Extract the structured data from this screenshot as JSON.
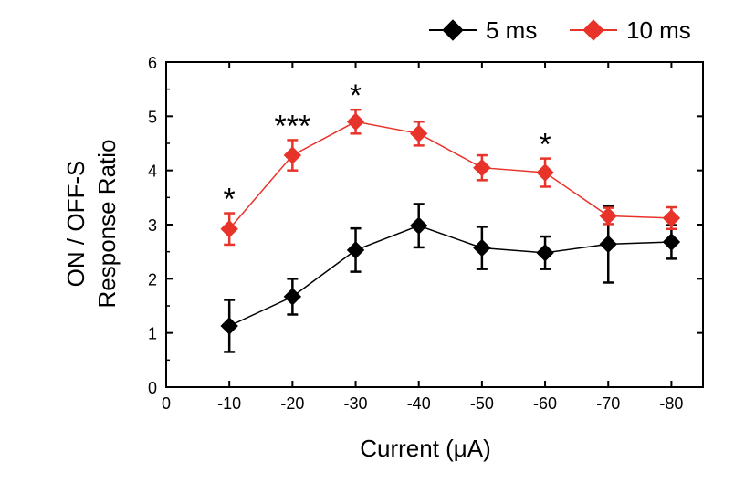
{
  "chart_data": {
    "type": "line",
    "title": "",
    "xlabel": "Current (μA)",
    "ylabel_lines": [
      "ON / OFF-S",
      "Response Ratio"
    ],
    "x_ticks": [
      0,
      -10,
      -20,
      -30,
      -40,
      -50,
      -60,
      -70,
      -80
    ],
    "y_ticks": [
      0,
      1,
      2,
      3,
      4,
      5,
      6
    ],
    "xlim": [
      0,
      -85
    ],
    "ylim": [
      0,
      6
    ],
    "x": [
      -10,
      -20,
      -30,
      -40,
      -50,
      -60,
      -70,
      -80
    ],
    "series": [
      {
        "name": "5 ms",
        "color": "#000000",
        "marker": "diamond",
        "values": [
          1.13,
          1.67,
          2.53,
          2.98,
          2.57,
          2.48,
          2.64,
          2.68
        ],
        "errors": [
          0.48,
          0.33,
          0.4,
          0.4,
          0.39,
          0.3,
          0.71,
          0.31
        ]
      },
      {
        "name": "10 ms",
        "color": "#e8332a",
        "marker": "diamond",
        "values": [
          2.92,
          4.28,
          4.9,
          4.68,
          4.05,
          3.96,
          3.16,
          3.12
        ],
        "errors": [
          0.29,
          0.28,
          0.22,
          0.22,
          0.23,
          0.26,
          0.15,
          0.2
        ]
      }
    ],
    "annotations": [
      {
        "x": -10,
        "text": "*"
      },
      {
        "x": -20,
        "text": "***"
      },
      {
        "x": -30,
        "text": "*"
      },
      {
        "x": -60,
        "text": "*"
      }
    ],
    "legend_position": "top-right",
    "grid": false
  }
}
